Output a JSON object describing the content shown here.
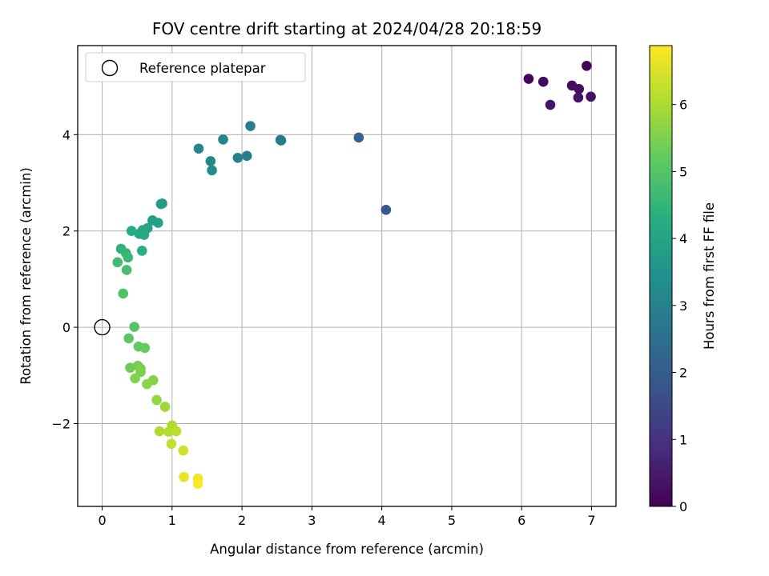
{
  "chart_data": {
    "type": "scatter",
    "title": "FOV centre drift starting at 2024/04/28 20:18:59",
    "xlabel": "Angular distance from reference (arcmin)",
    "ylabel": "Rotation from reference (arcmin)",
    "xlim": [
      -0.35,
      7.35
    ],
    "ylim": [
      -3.72,
      5.85
    ],
    "xticks": [
      0,
      1,
      2,
      3,
      4,
      5,
      6,
      7
    ],
    "xtick_labels": [
      "0",
      "1",
      "2",
      "3",
      "4",
      "5",
      "6",
      "7"
    ],
    "yticks": [
      -2,
      0,
      2,
      4
    ],
    "ytick_labels": [
      "−2",
      "0",
      "2",
      "4"
    ],
    "grid": true,
    "legend": {
      "placement": "top-left",
      "entries": [
        "Reference platepar"
      ]
    },
    "reference_point": {
      "x": 0,
      "y": 0
    },
    "colorbar": {
      "label": "Hours from first FF file",
      "colormap": "viridis",
      "range": [
        0,
        6.88
      ],
      "ticks": [
        0,
        1,
        2,
        3,
        4,
        5,
        6
      ],
      "tick_labels": [
        "0",
        "1",
        "2",
        "3",
        "4",
        "5",
        "6"
      ]
    },
    "points": [
      {
        "x": 6.93,
        "y": 5.43,
        "c": 0.05
      },
      {
        "x": 6.1,
        "y": 5.16,
        "c": 0.1
      },
      {
        "x": 6.31,
        "y": 5.1,
        "c": 0.15
      },
      {
        "x": 6.72,
        "y": 5.02,
        "c": 0.2
      },
      {
        "x": 6.82,
        "y": 4.95,
        "c": 0.25
      },
      {
        "x": 6.99,
        "y": 4.79,
        "c": 0.3
      },
      {
        "x": 6.81,
        "y": 4.77,
        "c": 0.35
      },
      {
        "x": 6.41,
        "y": 4.62,
        "c": 0.4
      },
      {
        "x": 4.06,
        "y": 2.44,
        "c": 1.9
      },
      {
        "x": 3.67,
        "y": 3.94,
        "c": 2.2
      },
      {
        "x": 2.55,
        "y": 3.89,
        "c": 2.75
      },
      {
        "x": 2.56,
        "y": 3.88,
        "c": 2.8
      },
      {
        "x": 2.12,
        "y": 4.18,
        "c": 2.9
      },
      {
        "x": 2.07,
        "y": 3.56,
        "c": 2.95
      },
      {
        "x": 1.94,
        "y": 3.52,
        "c": 3.0
      },
      {
        "x": 1.73,
        "y": 3.9,
        "c": 3.1
      },
      {
        "x": 1.38,
        "y": 3.71,
        "c": 3.15
      },
      {
        "x": 1.55,
        "y": 3.45,
        "c": 3.25
      },
      {
        "x": 1.57,
        "y": 3.26,
        "c": 3.35
      },
      {
        "x": 0.86,
        "y": 2.57,
        "c": 3.7
      },
      {
        "x": 0.84,
        "y": 2.56,
        "c": 3.75
      },
      {
        "x": 0.72,
        "y": 2.22,
        "c": 3.85
      },
      {
        "x": 0.8,
        "y": 2.17,
        "c": 3.9
      },
      {
        "x": 0.65,
        "y": 2.06,
        "c": 4.0
      },
      {
        "x": 0.58,
        "y": 2.02,
        "c": 4.05
      },
      {
        "x": 0.53,
        "y": 1.94,
        "c": 4.1
      },
      {
        "x": 0.6,
        "y": 1.92,
        "c": 4.15
      },
      {
        "x": 0.42,
        "y": 2.0,
        "c": 4.2
      },
      {
        "x": 0.57,
        "y": 1.59,
        "c": 4.3
      },
      {
        "x": 0.27,
        "y": 1.63,
        "c": 4.4
      },
      {
        "x": 0.34,
        "y": 1.54,
        "c": 4.5
      },
      {
        "x": 0.37,
        "y": 1.45,
        "c": 4.6
      },
      {
        "x": 0.22,
        "y": 1.35,
        "c": 4.7
      },
      {
        "x": 0.35,
        "y": 1.19,
        "c": 4.8
      },
      {
        "x": 0.3,
        "y": 0.7,
        "c": 4.9
      },
      {
        "x": 0.46,
        "y": 0.01,
        "c": 5.0
      },
      {
        "x": 0.38,
        "y": -0.23,
        "c": 5.1
      },
      {
        "x": 0.52,
        "y": -0.4,
        "c": 5.2
      },
      {
        "x": 0.61,
        "y": -0.43,
        "c": 5.25
      },
      {
        "x": 0.4,
        "y": -0.84,
        "c": 5.35
      },
      {
        "x": 0.51,
        "y": -0.8,
        "c": 5.4
      },
      {
        "x": 0.55,
        "y": -0.86,
        "c": 5.45
      },
      {
        "x": 0.55,
        "y": -0.93,
        "c": 5.5
      },
      {
        "x": 0.47,
        "y": -1.06,
        "c": 5.55
      },
      {
        "x": 0.73,
        "y": -1.1,
        "c": 5.6
      },
      {
        "x": 0.64,
        "y": -1.18,
        "c": 5.65
      },
      {
        "x": 0.78,
        "y": -1.51,
        "c": 5.75
      },
      {
        "x": 0.9,
        "y": -1.65,
        "c": 5.85
      },
      {
        "x": 1.0,
        "y": -2.04,
        "c": 6.0
      },
      {
        "x": 0.82,
        "y": -2.16,
        "c": 6.05
      },
      {
        "x": 0.95,
        "y": -2.17,
        "c": 6.1
      },
      {
        "x": 1.06,
        "y": -2.16,
        "c": 6.15
      },
      {
        "x": 0.99,
        "y": -2.42,
        "c": 6.25
      },
      {
        "x": 1.16,
        "y": -2.56,
        "c": 6.4
      },
      {
        "x": 1.17,
        "y": -3.11,
        "c": 6.65
      },
      {
        "x": 1.37,
        "y": -3.14,
        "c": 6.75
      },
      {
        "x": 1.37,
        "y": -3.25,
        "c": 6.85
      }
    ]
  }
}
